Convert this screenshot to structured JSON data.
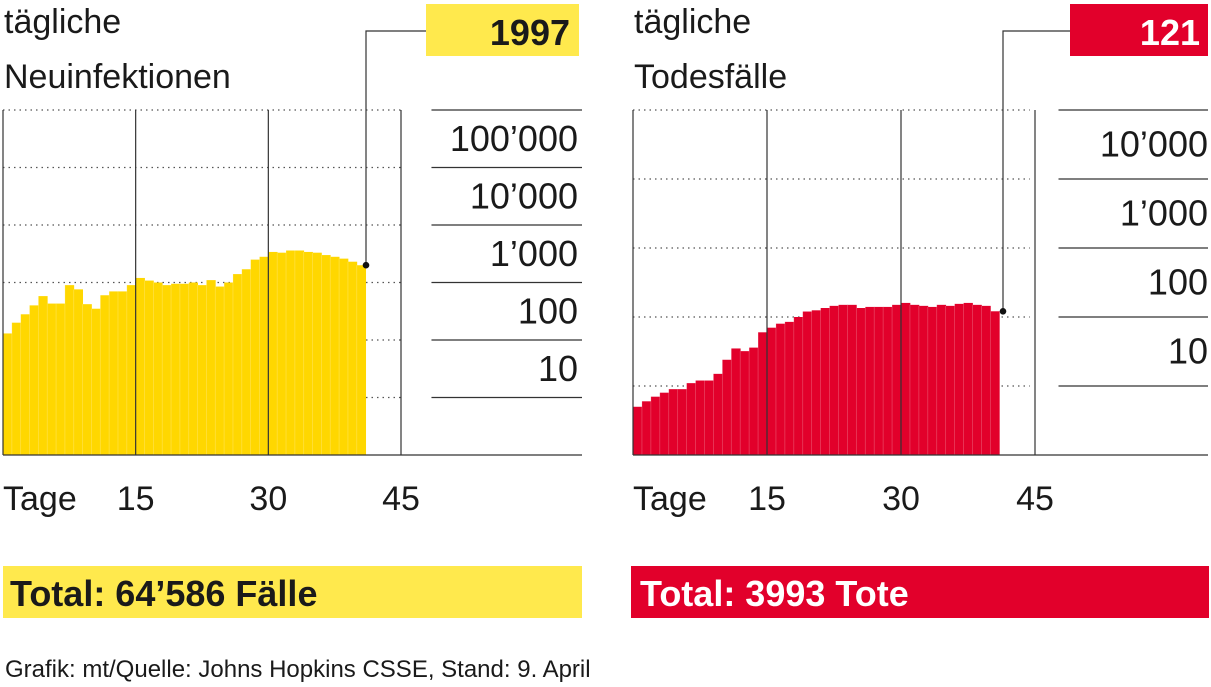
{
  "chart_data": [
    {
      "type": "bar",
      "title": "tägliche\nNeuinfektionen",
      "latest_value_label": "1997",
      "xlabel": "Tage",
      "x_ticks": [
        15,
        30,
        45
      ],
      "y_scale": "log",
      "y_ticks": [
        10,
        100,
        1000,
        10000,
        100000
      ],
      "y_tick_labels": [
        "10",
        "100",
        "1’000",
        "10’000",
        "100’000"
      ],
      "ylim": [
        1,
        1000000
      ],
      "xlim": [
        0,
        45
      ],
      "grid": true,
      "color": "#ffd700",
      "days": [
        1,
        2,
        3,
        4,
        5,
        6,
        7,
        8,
        9,
        10,
        11,
        12,
        13,
        14,
        15,
        16,
        17,
        18,
        19,
        20,
        21,
        22,
        23,
        24,
        25,
        26,
        27,
        28,
        29,
        30,
        31,
        32,
        33,
        34,
        35,
        36,
        37,
        38,
        39,
        40,
        41
      ],
      "values": [
        130,
        200,
        280,
        400,
        580,
        430,
        430,
        900,
        760,
        420,
        350,
        600,
        700,
        700,
        900,
        1200,
        1080,
        1000,
        900,
        950,
        950,
        1000,
        900,
        1100,
        850,
        1000,
        1400,
        1700,
        2500,
        2800,
        3400,
        3300,
        3600,
        3600,
        3400,
        3300,
        3000,
        2800,
        2600,
        2300,
        1997
      ],
      "total_label": "Total: 64’586 Fälle"
    },
    {
      "type": "bar",
      "title": "tägliche\nTodesfälle",
      "latest_value_label": "121",
      "xlabel": "Tage",
      "x_ticks": [
        15,
        30,
        45
      ],
      "y_scale": "log",
      "y_ticks": [
        10,
        100,
        1000,
        10000
      ],
      "y_tick_labels": [
        "10",
        "100",
        "1’000",
        "10’000"
      ],
      "ylim": [
        1,
        100000
      ],
      "xlim": [
        0,
        45
      ],
      "grid": true,
      "color": "#e2002b",
      "days": [
        1,
        2,
        3,
        4,
        5,
        6,
        7,
        8,
        9,
        10,
        11,
        12,
        13,
        14,
        15,
        16,
        17,
        18,
        19,
        20,
        21,
        22,
        23,
        24,
        25,
        26,
        27,
        28,
        29,
        30,
        31,
        32,
        33,
        34,
        35,
        36,
        37,
        38,
        39,
        40,
        41
      ],
      "values": [
        5,
        6,
        7,
        8,
        9,
        9,
        11,
        12,
        12,
        15,
        24,
        35,
        32,
        36,
        60,
        70,
        80,
        85,
        100,
        120,
        125,
        135,
        145,
        150,
        150,
        135,
        140,
        140,
        140,
        150,
        160,
        150,
        145,
        140,
        150,
        145,
        155,
        160,
        150,
        145,
        121
      ],
      "total_label": "Total: 3993 Tote"
    }
  ],
  "source": "Grafik: mt/Quelle: Johns Hopkins CSSE, Stand: 9. April"
}
